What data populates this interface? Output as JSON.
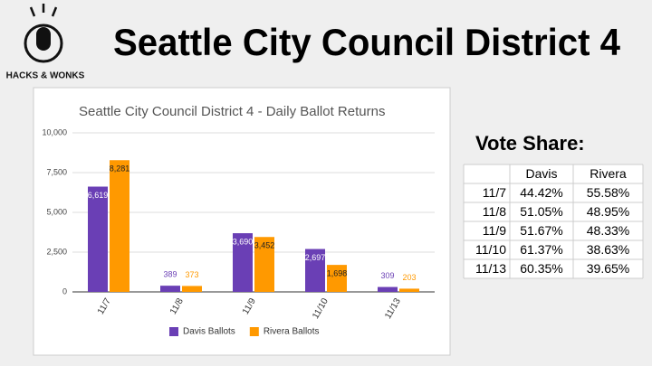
{
  "header": {
    "title": "Seattle City Council District 4",
    "logo": "HACKS & WONKS"
  },
  "chart_data": {
    "type": "bar",
    "title": "Seattle City Council District 4 - Daily Ballot Returns",
    "categories": [
      "11/7",
      "11/8",
      "11/9",
      "11/10",
      "11/13"
    ],
    "series": [
      {
        "name": "Davis Ballots",
        "color": "#6a3fb5",
        "values": [
          6619,
          389,
          3690,
          2697,
          309
        ],
        "value_labels": [
          "6,619",
          "389",
          "3,690",
          "2,697",
          "309"
        ]
      },
      {
        "name": "Rivera Ballots",
        "color": "#ff9900",
        "values": [
          8281,
          373,
          3452,
          1698,
          203
        ],
        "value_labels": [
          "8,281",
          "373",
          "3,452",
          "1,698",
          "203"
        ]
      }
    ],
    "ylim": [
      0,
      10000
    ],
    "yticks": [
      0,
      {
        "value": 2500,
        "label": "2,500"
      },
      {
        "value": 5000,
        "label": "5,000"
      },
      {
        "value": 7500,
        "label": "7,500"
      },
      {
        "value": 10000,
        "label": "10,000"
      }
    ],
    "grid": true,
    "legend": "bottom"
  },
  "table": {
    "title": "Vote Share:",
    "header": [
      "Davis",
      "Rivera"
    ],
    "rows": [
      [
        "11/7",
        "44.42%",
        "55.58%"
      ],
      [
        "11/8",
        "51.05%",
        "48.95%"
      ],
      [
        "11/9",
        "51.67%",
        "48.33%"
      ],
      [
        "11/10",
        "61.37%",
        "38.63%"
      ],
      [
        "11/13",
        "60.35%",
        "39.65%"
      ]
    ]
  }
}
